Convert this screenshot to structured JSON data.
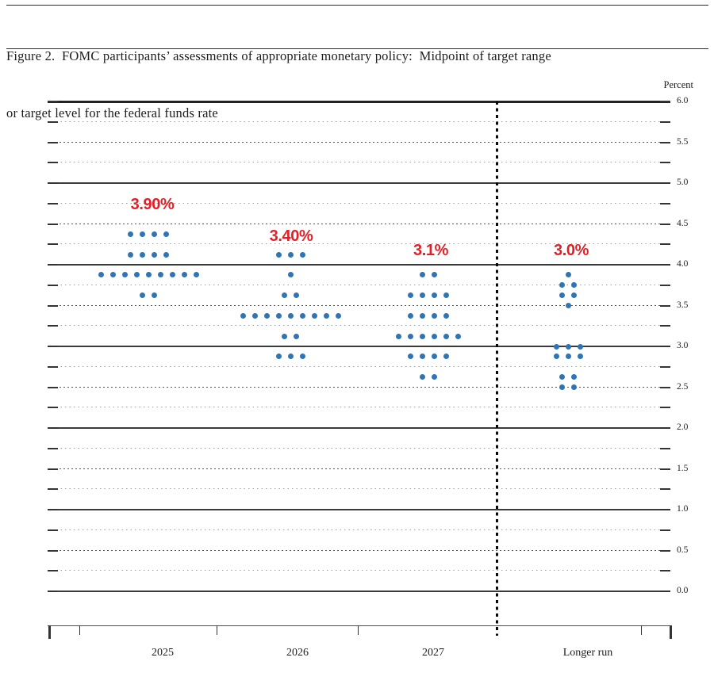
{
  "figure": {
    "title_line1": "Figure 2.  FOMC participants’ assessments of appropriate monetary policy:  Midpoint of target range",
    "title_line2": "or target level for the federal funds rate",
    "unit_label": "Percent"
  },
  "axis": {
    "right_tick_labels": [
      "6.0",
      "5.5",
      "5.0",
      "4.5",
      "4.0",
      "3.5",
      "3.0",
      "2.5",
      "2.0",
      "1.5",
      "1.0",
      "0.5",
      "0.0"
    ]
  },
  "chart_data": {
    "type": "scatter",
    "title": "FOMC participants’ assessments of appropriate monetary policy: Midpoint of target range or target level for the federal funds rate",
    "ylabel": "Percent",
    "ylim": [
      0.0,
      6.0
    ],
    "grid_step": 0.25,
    "label_step": 0.5,
    "grid": true,
    "legend": "none",
    "dot_color": "#2f74b4",
    "median_color": "#e51e25",
    "categories": [
      "2025",
      "2026",
      "2027",
      "Longer run"
    ],
    "medians": [
      {
        "category": "2025",
        "label": "3.90%"
      },
      {
        "category": "2026",
        "label": "3.40%"
      },
      {
        "category": "2027",
        "label": "3.1%"
      },
      {
        "category": "Longer run",
        "label": "3.0%"
      }
    ],
    "series": [
      {
        "category": "2025",
        "distribution": [
          {
            "rate": 4.375,
            "count": 4
          },
          {
            "rate": 4.125,
            "count": 4
          },
          {
            "rate": 3.875,
            "count": 9
          },
          {
            "rate": 3.625,
            "count": 2
          }
        ]
      },
      {
        "category": "2026",
        "distribution": [
          {
            "rate": 4.125,
            "count": 3
          },
          {
            "rate": 3.875,
            "count": 1
          },
          {
            "rate": 3.625,
            "count": 2
          },
          {
            "rate": 3.375,
            "count": 9
          },
          {
            "rate": 3.125,
            "count": 2
          },
          {
            "rate": 2.875,
            "count": 3
          }
        ]
      },
      {
        "category": "2027",
        "distribution": [
          {
            "rate": 3.875,
            "count": 2
          },
          {
            "rate": 3.625,
            "count": 4
          },
          {
            "rate": 3.375,
            "count": 4
          },
          {
            "rate": 3.125,
            "count": 6
          },
          {
            "rate": 2.875,
            "count": 4
          },
          {
            "rate": 2.625,
            "count": 2
          }
        ]
      },
      {
        "category": "Longer run",
        "distribution": [
          {
            "rate": 3.875,
            "count": 1
          },
          {
            "rate": 3.75,
            "count": 2
          },
          {
            "rate": 3.625,
            "count": 2
          },
          {
            "rate": 3.5,
            "count": 1
          },
          {
            "rate": 3.0,
            "count": 3
          },
          {
            "rate": 2.875,
            "count": 3
          },
          {
            "rate": 2.625,
            "count": 2
          },
          {
            "rate": 2.5,
            "count": 2
          }
        ]
      }
    ]
  }
}
